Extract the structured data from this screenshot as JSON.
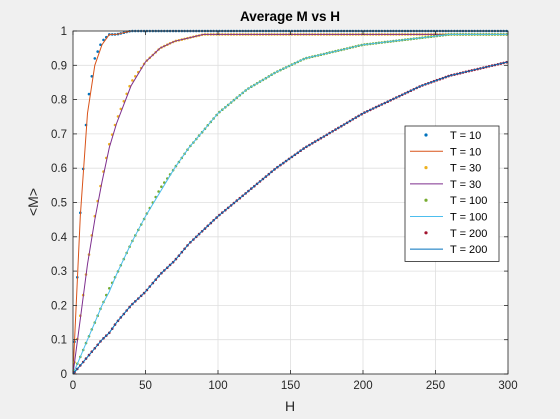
{
  "chart_data": {
    "type": "line",
    "title": "Average M vs H",
    "xlabel": "H",
    "ylabel": "<M>",
    "xlim": [
      0,
      300
    ],
    "ylim": [
      0,
      1
    ],
    "xticks": [
      0,
      50,
      100,
      150,
      200,
      250,
      300
    ],
    "xtick_labels": [
      "0",
      "50",
      "100",
      "150",
      "200",
      "250",
      "300"
    ],
    "yticks": [
      0,
      0.1,
      0.2,
      0.3,
      0.4,
      0.5,
      0.6,
      0.7,
      0.8,
      0.9,
      1
    ],
    "ytick_labels": [
      "0",
      "0.1",
      "0.2",
      "0.3",
      "0.4",
      "0.5",
      "0.6",
      "0.7",
      "0.8",
      "0.9",
      "1"
    ],
    "grid": true,
    "legend_position": "right",
    "x": [
      0,
      5,
      10,
      15,
      20,
      25,
      30,
      40,
      50,
      60,
      70,
      80,
      90,
      100,
      120,
      140,
      160,
      180,
      200,
      220,
      240,
      260,
      280,
      300
    ],
    "series": [
      {
        "name": "T = 10",
        "style": "dots",
        "color": "#0072bd",
        "values": [
          0,
          0.47,
          0.79,
          0.92,
          0.97,
          0.99,
          0.99,
          1,
          1,
          1,
          1,
          1,
          1,
          1,
          1,
          1,
          1,
          1,
          1,
          1,
          1,
          1,
          1,
          1
        ]
      },
      {
        "name": "T = 10",
        "style": "line",
        "color": "#d95319",
        "values": [
          0,
          0.46,
          0.76,
          0.9,
          0.96,
          0.99,
          0.99,
          1,
          1,
          1,
          1,
          1,
          1,
          1,
          1,
          1,
          1,
          1,
          1,
          1,
          1,
          1,
          1,
          1
        ]
      },
      {
        "name": "T = 30",
        "style": "dots",
        "color": "#edb120",
        "values": [
          0,
          0.17,
          0.32,
          0.46,
          0.57,
          0.67,
          0.74,
          0.85,
          0.91,
          0.95,
          0.97,
          0.98,
          0.99,
          0.99,
          0.99,
          0.99,
          0.99,
          0.99,
          0.99,
          0.99,
          0.99,
          0.99,
          0.99,
          0.99
        ]
      },
      {
        "name": "T = 30",
        "style": "line",
        "color": "#7e2f8e",
        "values": [
          0,
          0.16,
          0.32,
          0.45,
          0.56,
          0.66,
          0.73,
          0.84,
          0.91,
          0.95,
          0.97,
          0.98,
          0.99,
          0.99,
          0.99,
          0.99,
          0.99,
          0.99,
          0.99,
          0.99,
          0.99,
          0.99,
          0.99,
          0.99
        ]
      },
      {
        "name": "T = 100",
        "style": "dots",
        "color": "#77ac30",
        "values": [
          0,
          0.05,
          0.1,
          0.15,
          0.2,
          0.25,
          0.29,
          0.38,
          0.46,
          0.54,
          0.6,
          0.66,
          0.71,
          0.76,
          0.83,
          0.88,
          0.92,
          0.94,
          0.96,
          0.97,
          0.98,
          0.99,
          0.99,
          0.99
        ]
      },
      {
        "name": "T = 100",
        "style": "line",
        "color": "#4dbeee",
        "values": [
          0,
          0.05,
          0.1,
          0.15,
          0.2,
          0.24,
          0.29,
          0.38,
          0.46,
          0.53,
          0.6,
          0.66,
          0.71,
          0.76,
          0.83,
          0.88,
          0.92,
          0.94,
          0.96,
          0.97,
          0.98,
          0.99,
          0.99,
          0.99
        ]
      },
      {
        "name": "T = 200",
        "style": "dots",
        "color": "#a2142f",
        "values": [
          0,
          0.025,
          0.05,
          0.075,
          0.1,
          0.12,
          0.15,
          0.2,
          0.24,
          0.29,
          0.33,
          0.38,
          0.42,
          0.46,
          0.53,
          0.6,
          0.66,
          0.71,
          0.76,
          0.8,
          0.84,
          0.87,
          0.89,
          0.91
        ]
      },
      {
        "name": "T = 200",
        "style": "line",
        "color": "#0072bd",
        "values": [
          0,
          0.025,
          0.05,
          0.075,
          0.1,
          0.12,
          0.15,
          0.2,
          0.24,
          0.29,
          0.33,
          0.38,
          0.42,
          0.46,
          0.53,
          0.6,
          0.66,
          0.71,
          0.76,
          0.8,
          0.84,
          0.87,
          0.89,
          0.91
        ]
      }
    ]
  }
}
